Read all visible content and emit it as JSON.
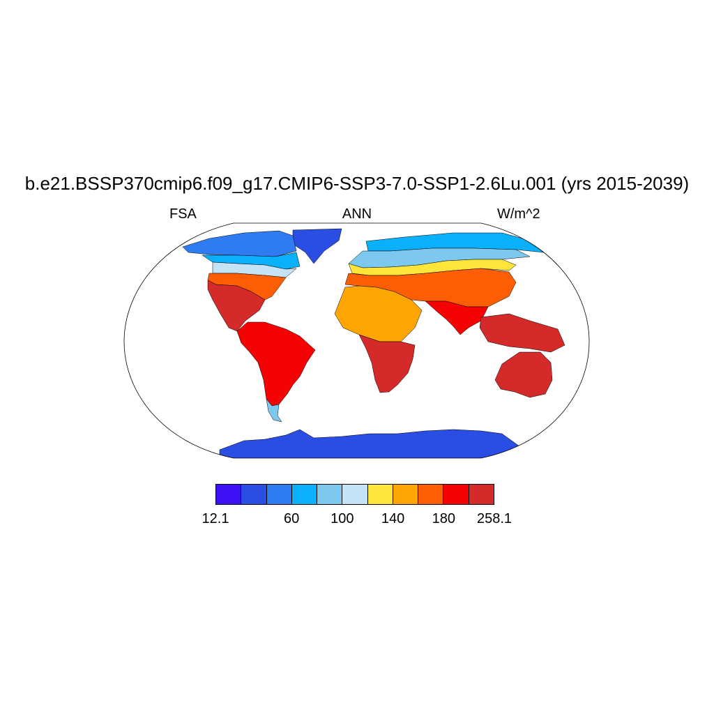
{
  "header": {
    "title": "b.e21.BSSP370cmip6.f09_g17.CMIP6-SSP3-7.0-SSP1-2.6Lu.001 (yrs 2015-2039)",
    "variable": "FSA",
    "season": "ANN",
    "units": "W/m^2"
  },
  "map": {
    "projection": "Robinson",
    "ocean_color": "#ffffff",
    "outline_color": "#000000"
  },
  "colorbar": {
    "colors": [
      "#3d10f5",
      "#2a4de3",
      "#2f7cf2",
      "#0ab0f9",
      "#7cc8ef",
      "#c4e3f5",
      "#fde53a",
      "#fda603",
      "#fd5e04",
      "#f50304",
      "#d42a2a"
    ],
    "labels": [
      {
        "text": "12.1",
        "boundary": 0
      },
      {
        "text": "60",
        "boundary": 3
      },
      {
        "text": "100",
        "boundary": 5
      },
      {
        "text": "140",
        "boundary": 7
      },
      {
        "text": "180",
        "boundary": 9
      },
      {
        "text": "258.1",
        "boundary": 11
      }
    ]
  },
  "regions": [
    {
      "name": "greenland",
      "color_index": 1
    },
    {
      "name": "north-america-arctic",
      "color_index": 2
    },
    {
      "name": "north-america-boreal",
      "color_index": 3
    },
    {
      "name": "north-america-midlat",
      "color_index": 5
    },
    {
      "name": "north-america-south",
      "color_index": 8
    },
    {
      "name": "mexico-central-america",
      "color_index": 10
    },
    {
      "name": "south-america",
      "color_index": 9
    },
    {
      "name": "patagonia",
      "color_index": 4
    },
    {
      "name": "eurasia-arctic",
      "color_index": 3
    },
    {
      "name": "eurasia-boreal",
      "color_index": 4
    },
    {
      "name": "eurasia-midlat",
      "color_index": 6
    },
    {
      "name": "europe-south-middle-east",
      "color_index": 8
    },
    {
      "name": "africa-north",
      "color_index": 7
    },
    {
      "name": "africa-south",
      "color_index": 10
    },
    {
      "name": "south-asia",
      "color_index": 9
    },
    {
      "name": "southeast-asia",
      "color_index": 10
    },
    {
      "name": "australia",
      "color_index": 10
    },
    {
      "name": "antarctica",
      "color_index": 1
    }
  ]
}
